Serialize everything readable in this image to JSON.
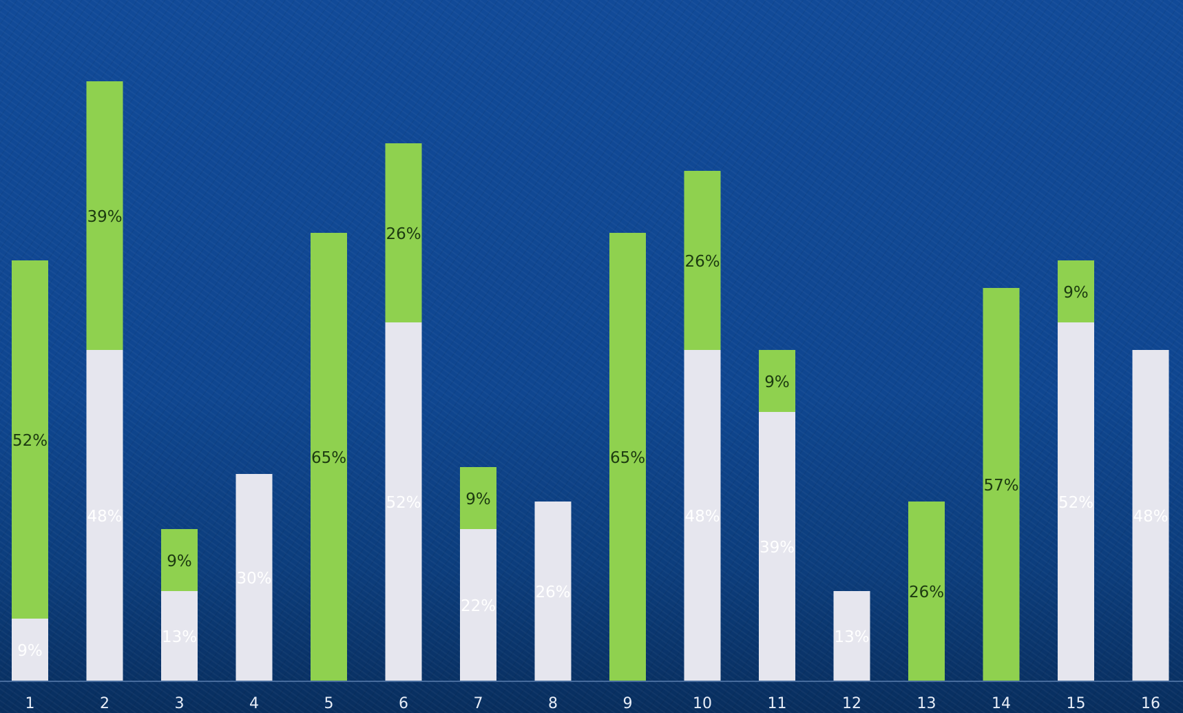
{
  "chart_data": {
    "type": "bar",
    "stacked": true,
    "categories": [
      "1",
      "2",
      "3",
      "4",
      "5",
      "6",
      "7",
      "8",
      "9",
      "10",
      "11",
      "12",
      "13",
      "14",
      "15",
      "16"
    ],
    "ylim": [
      0,
      100
    ],
    "grid": false,
    "legend": "none",
    "series": [
      {
        "color": "#e6e6ee",
        "label_color": "#ffffff",
        "values": [
          9,
          48,
          13,
          30,
          0,
          52,
          22,
          26,
          0,
          48,
          39,
          13,
          0,
          0,
          52,
          48
        ],
        "labels": [
          "9%",
          "48%",
          "13%",
          "30%",
          "",
          "52%",
          "22%",
          "26%",
          "",
          "48%",
          "39%",
          "13%",
          "",
          "",
          "52%",
          "48%"
        ]
      },
      {
        "color": "#8fd14f",
        "label_color": "#1c3a10",
        "values": [
          52,
          39,
          9,
          0,
          65,
          26,
          9,
          0,
          65,
          26,
          9,
          0,
          26,
          57,
          9,
          0
        ],
        "labels": [
          "52%",
          "39%",
          "9%",
          "",
          "65%",
          "26%",
          "9%",
          "",
          "65%",
          "26%",
          "9%",
          "",
          "26%",
          "57%",
          "9%",
          ""
        ]
      }
    ]
  }
}
